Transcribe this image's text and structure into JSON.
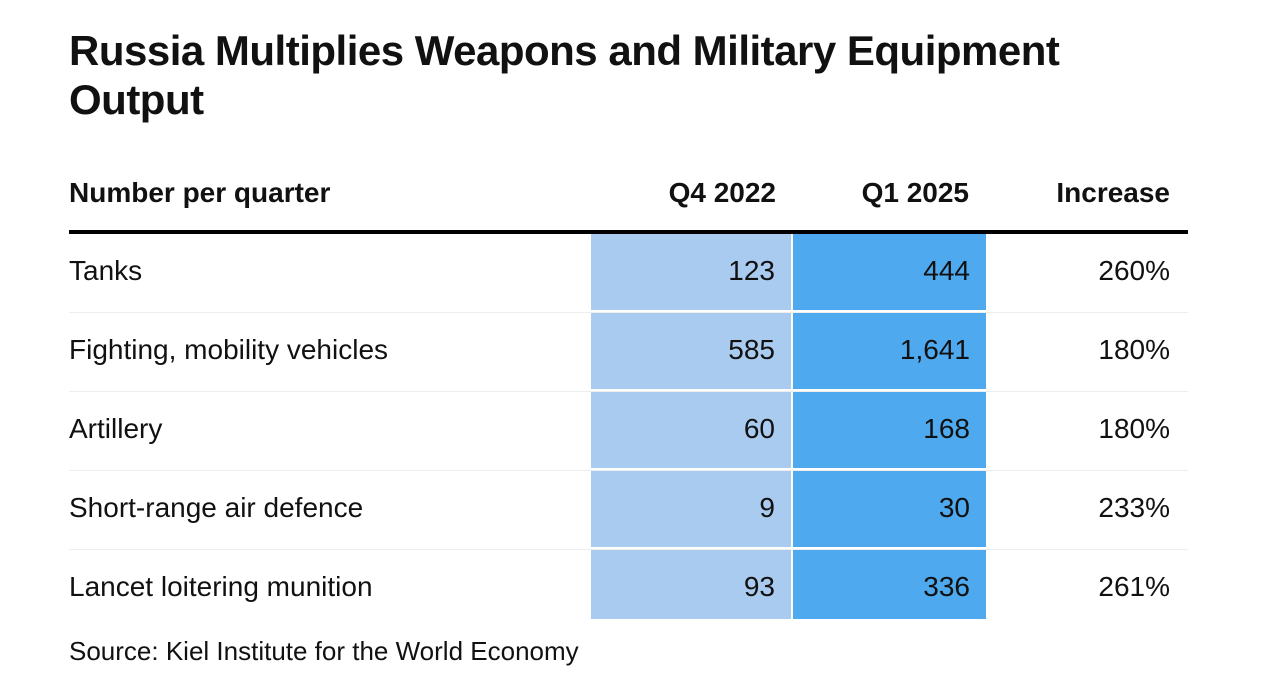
{
  "chart_data": {
    "type": "table",
    "title": "Russia Multiplies Weapons and Military Equipment Output",
    "columns": [
      "Number per quarter",
      "Q4 2022",
      "Q1 2025",
      "Increase"
    ],
    "rows": [
      {
        "label": "Tanks",
        "q4_2022": "123",
        "q1_2025": "444",
        "increase": "260%"
      },
      {
        "label": "Fighting, mobility vehicles",
        "q4_2022": "585",
        "q1_2025": "1,641",
        "increase": "180%"
      },
      {
        "label": "Artillery",
        "q4_2022": "60",
        "q1_2025": "168",
        "increase": "180%"
      },
      {
        "label": "Short-range air defence",
        "q4_2022": "9",
        "q1_2025": "30",
        "increase": "233%"
      },
      {
        "label": "Lancet loitering munition",
        "q4_2022": "93",
        "q1_2025": "336",
        "increase": "261%"
      }
    ],
    "source": "Source: Kiel Institute for the World Economy",
    "colors": {
      "q4_2022_fill": "#a9cbf0",
      "q1_2025_fill": "#4ea9ee"
    }
  }
}
